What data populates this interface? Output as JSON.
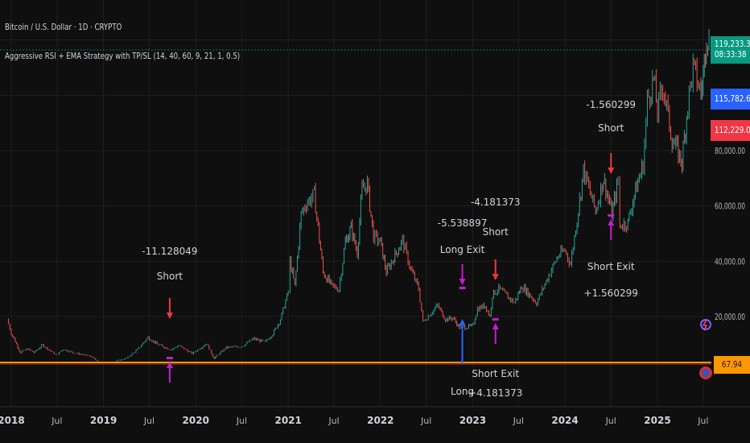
{
  "header": {
    "symbol_title": "Bitcoin / U.S. Dollar · 1D · CRYPTO",
    "strategy_title": "Aggressive RSI + EMA Strategy with TP/SL (14, 40, 60, 9, 21, 1, 0.5)"
  },
  "price_badges": {
    "last_price": "119,233.32",
    "countdown": "08:33:38",
    "ema_value": "115,782.60",
    "ema2_value": "112,229.04",
    "indicator_value": "67.94"
  },
  "colors": {
    "background": "#0f0f0f",
    "grid": "#1e1e1e",
    "up_candle": "#26a69a",
    "down_candle": "#ef5350",
    "long_marker": "#2962ff",
    "short_marker": "#f23645",
    "exit_marker": "#c71ad2",
    "indicator_line": "#ff9800",
    "last_price_badge": "#089981",
    "ema_badge": "#2962ff",
    "ema2_badge": "#f23645",
    "indicator_badge": "#ff9800"
  },
  "chart_data": {
    "type": "line",
    "title": "Bitcoin / U.S. Dollar · 1D · CRYPTO",
    "xlabel": "",
    "ylabel": "",
    "x_tick_labels": [
      "2018",
      "Jul",
      "2019",
      "Jul",
      "2020",
      "Jul",
      "2021",
      "Jul",
      "2022",
      "Jul",
      "2023",
      "Jul",
      "2024",
      "Jul",
      "2025",
      "Jul"
    ],
    "y_tick_labels": [
      "20,000.00",
      "40,000.00",
      "60,000.00",
      "80,000.00"
    ],
    "ylim": [
      0,
      125000
    ],
    "grid": true,
    "series": [
      {
        "name": "",
        "x": [
          "2017-12-15",
          "2018-01-01",
          "2018-02-06",
          "2018-03-05",
          "2018-04-01",
          "2018-05-05",
          "2018-06-29",
          "2018-07-25",
          "2018-09-01",
          "2018-11-15",
          "2018-12-15",
          "2019-02-01",
          "2019-04-02",
          "2019-05-15",
          "2019-06-26",
          "2019-08-01",
          "2019-09-25",
          "2019-10-26",
          "2019-12-18",
          "2020-02-13",
          "2020-03-13",
          "2020-05-01",
          "2020-07-01",
          "2020-08-17",
          "2020-10-01",
          "2020-11-01",
          "2020-12-01",
          "2021-01-01",
          "2021-01-08",
          "2021-01-27",
          "2021-02-21",
          "2021-03-13",
          "2021-04-14",
          "2021-05-19",
          "2021-06-22",
          "2021-07-20",
          "2021-08-15",
          "2021-09-07",
          "2021-10-01",
          "2021-10-20",
          "2021-11-10",
          "2021-12-04",
          "2022-01-01",
          "2022-01-24",
          "2022-03-29",
          "2022-05-01",
          "2022-06-01",
          "2022-06-18",
          "2022-08-15",
          "2022-09-15",
          "2022-10-15",
          "2022-11-09",
          "2022-11-21",
          "2022-12-31",
          "2023-01-20",
          "2023-02-20",
          "2023-03-10",
          "2023-03-20",
          "2023-04-14",
          "2023-06-15",
          "2023-07-14",
          "2023-09-11",
          "2023-10-24",
          "2023-12-05",
          "2024-01-01",
          "2024-01-23",
          "2024-02-28",
          "2024-03-14",
          "2024-05-01",
          "2024-06-01",
          "2024-07-05",
          "2024-07-29",
          "2024-08-05",
          "2024-09-06",
          "2024-10-01",
          "2024-11-05",
          "2024-11-22",
          "2024-12-17",
          "2025-01-01",
          "2025-01-22",
          "2025-02-28",
          "2025-04-08",
          "2025-05-01",
          "2025-05-22",
          "2025-06-22",
          "2025-07-01",
          "2025-07-14",
          "2025-07-24"
        ],
        "y": [
          19000,
          14000,
          7000,
          8300,
          7000,
          9700,
          6000,
          8200,
          7000,
          5500,
          3200,
          3400,
          4900,
          8000,
          12500,
          10000,
          8000,
          9500,
          6600,
          10300,
          4900,
          8800,
          9200,
          12000,
          10700,
          13800,
          19000,
          29000,
          40000,
          31000,
          57000,
          61000,
          64000,
          36000,
          31000,
          30000,
          47000,
          52000,
          43000,
          66000,
          68000,
          49000,
          47000,
          36000,
          47500,
          37000,
          30000,
          18000,
          24000,
          19000,
          19500,
          16000,
          16000,
          16500,
          22800,
          24000,
          20000,
          28000,
          30000,
          25000,
          31000,
          25000,
          34000,
          42000,
          44000,
          39000,
          62000,
          73000,
          58000,
          70000,
          57000,
          69000,
          53000,
          54000,
          64000,
          75000,
          98000,
          106000,
          94000,
          104000,
          84000,
          76000,
          97000,
          110000,
          101000,
          107000,
          123000,
          119233
        ]
      }
    ],
    "trades": [
      {
        "date": "2019-09-20",
        "value": "-11.128049",
        "side": "Short"
      },
      {
        "date": "2022-11-21",
        "value": "-5.538897",
        "side": "Long Exit"
      },
      {
        "date": "2022-11-21",
        "value": "",
        "side": "Long"
      },
      {
        "date": "2023-04-01",
        "value": "-4.181373",
        "side": "Short"
      },
      {
        "date": "2023-04-01",
        "value": "+4.181373",
        "side": "Short Exit"
      },
      {
        "date": "2024-07-01",
        "value": "-1.560299",
        "side": "Short"
      },
      {
        "date": "2024-07-01",
        "value": "+1.560299",
        "side": "Short Exit"
      }
    ]
  }
}
